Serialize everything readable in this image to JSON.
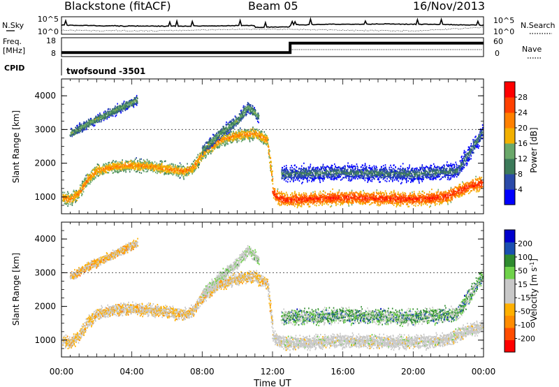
{
  "header": {
    "station": "Blackstone (fitACF)",
    "beam": "Beam 05",
    "date": "16/Nov/2013"
  },
  "top_panel": {
    "left_label": "N.Sky",
    "left_ticks": [
      "10^5",
      "10^0"
    ],
    "right_ticks": [
      "10^5",
      "10^0"
    ],
    "right_label": "N.Search"
  },
  "freq_panel": {
    "label_line1": "Freq.",
    "label_line2": "[MHz]",
    "left_ticks": [
      "18",
      "8"
    ],
    "right_ticks": [
      "60",
      "0"
    ],
    "right_label": "Nave"
  },
  "cpid": {
    "label": "CPID",
    "name": "twofsound",
    "id": "-3501"
  },
  "colors": {
    "power": [
      "#0000ff",
      "#2a4aa8",
      "#3c7a5a",
      "#6aa86a",
      "#f2b000",
      "#ff8000",
      "#ff4000",
      "#ff0000"
    ],
    "velocity": [
      "#ff0000",
      "#ff4c00",
      "#ff8c00",
      "#ffb000",
      "#c8c8c8",
      "#c8c8c8",
      "#6fd24a",
      "#2e8b2e",
      "#1a4fb0",
      "#0000cd"
    ],
    "ground_scatter": "#c8c8c8"
  },
  "chart_data": [
    {
      "type": "heatmap",
      "name": "power",
      "ylabel": "Slant Range [km]",
      "ylim": [
        500,
        4500
      ],
      "yticks": [
        "4000",
        "3000",
        "2000",
        "1000"
      ],
      "xlim": [
        0,
        24
      ],
      "colorbar": {
        "label": "Power [dB]",
        "ticks": [
          "28",
          "24",
          "20",
          "16",
          "12",
          "8",
          "4"
        ],
        "range": [
          0,
          32
        ]
      },
      "scatter_bands": [
        {
          "t": [
            0.0,
            0.5,
            1.0,
            1.5,
            2.0,
            3.0,
            4.0,
            5.0,
            6.0,
            7.0,
            7.5,
            8.0,
            9.0,
            10.0,
            11.0,
            11.7,
            12.0
          ],
          "range": [
            1000,
            950,
            1150,
            1550,
            1800,
            1920,
            1960,
            1920,
            1850,
            1780,
            1900,
            2300,
            2700,
            2850,
            2900,
            2700,
            1400
          ],
          "width": 250,
          "level": 22
        },
        {
          "t": [
            12.0,
            12.3,
            12.8,
            14.0,
            16.0,
            18.0,
            20.0,
            21.0,
            22.0,
            23.0,
            24.0
          ],
          "range": [
            1150,
            1000,
            930,
            960,
            1000,
            980,
            960,
            980,
            1050,
            1300,
            1450
          ],
          "width": 280,
          "level": 28
        },
        {
          "t": [
            0.5,
            1.5,
            2.5,
            3.5,
            4.3
          ],
          "range": [
            2900,
            3200,
            3450,
            3700,
            3900
          ],
          "width": 180,
          "level": 14
        },
        {
          "t": [
            8.0,
            9.0,
            10.0,
            10.6,
            11.2
          ],
          "range": [
            2400,
            2900,
            3300,
            3700,
            3400
          ],
          "width": 220,
          "level": 14
        },
        {
          "t": [
            12.5,
            16.0,
            20.0,
            22.5,
            24.0
          ],
          "range": [
            1700,
            1750,
            1700,
            1800,
            3000
          ],
          "width": 320,
          "level": 10
        }
      ]
    },
    {
      "type": "heatmap",
      "name": "velocity",
      "ylabel": "Slant Range [km]",
      "ylim": [
        500,
        4500
      ],
      "yticks": [
        "4000",
        "3000",
        "2000",
        "1000"
      ],
      "xlim": [
        0,
        24
      ],
      "xticks": [
        "00:00",
        "04:00",
        "08:00",
        "12:00",
        "16:00",
        "20:00",
        "00:00"
      ],
      "xlabel": "Time UT",
      "colorbar": {
        "label": "Velocity [m s",
        "label_sup": "-1",
        "label_end": "]",
        "ticks": [
          "200",
          "100",
          "50",
          "15",
          "-15",
          "-50",
          "-100",
          "-200"
        ],
        "range": [
          -250,
          250
        ]
      },
      "scatter_bands": [
        {
          "t": [
            0.0,
            0.5,
            1.0,
            1.5,
            2.0,
            3.0,
            4.0,
            5.0,
            6.0,
            7.0,
            7.5,
            8.0,
            9.0,
            10.0,
            11.0,
            11.7,
            12.0
          ],
          "range": [
            1000,
            950,
            1150,
            1550,
            1800,
            1920,
            1960,
            1920,
            1850,
            1780,
            1900,
            2300,
            2700,
            2850,
            2900,
            2700,
            1400
          ],
          "width": 250,
          "level": -60
        },
        {
          "t": [
            12.0,
            12.3,
            12.8,
            14.0,
            16.0,
            18.0,
            20.0,
            21.0,
            22.0,
            23.0,
            24.0
          ],
          "range": [
            1150,
            1000,
            930,
            960,
            1000,
            980,
            960,
            980,
            1050,
            1300,
            1450
          ],
          "width": 280,
          "level": 0
        },
        {
          "t": [
            0.5,
            1.5,
            2.5,
            3.5,
            4.3
          ],
          "range": [
            2900,
            3200,
            3450,
            3700,
            3900
          ],
          "width": 180,
          "level": -80
        },
        {
          "t": [
            8.0,
            9.0,
            10.0,
            10.6,
            11.2
          ],
          "range": [
            2400,
            2900,
            3300,
            3700,
            3400
          ],
          "width": 220,
          "level": 40
        },
        {
          "t": [
            12.5,
            16.0,
            20.0,
            22.5,
            24.0
          ],
          "range": [
            1700,
            1750,
            1700,
            1800,
            3000
          ],
          "width": 320,
          "level": 120
        }
      ]
    }
  ],
  "freq_series": {
    "x": [
      0,
      13.0,
      13.0,
      24
    ],
    "freq_mhz": [
      9.5,
      9.5,
      16.5,
      16.5
    ]
  }
}
